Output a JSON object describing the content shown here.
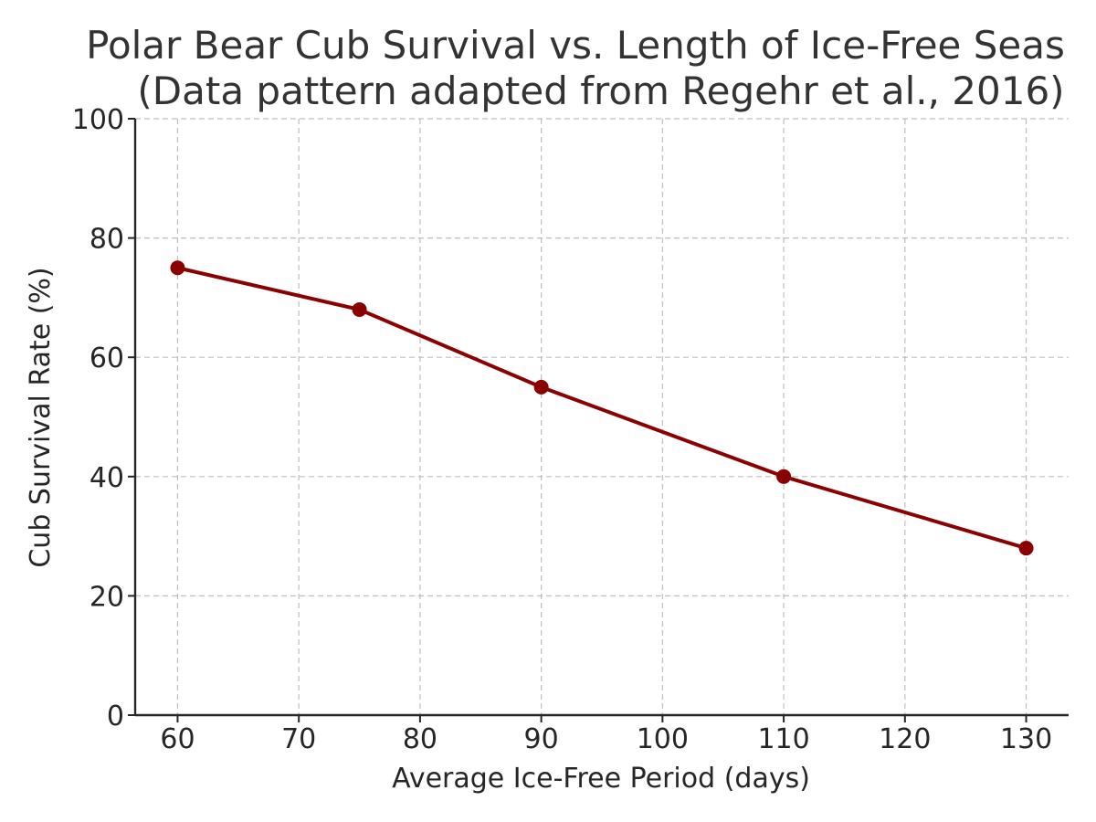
{
  "chart_data": {
    "type": "line",
    "title_line1": "Polar Bear Cub Survival vs. Length of Ice-Free Seas",
    "title_line2": "(Data pattern adapted from Regehr et al., 2016)",
    "xlabel": "Average Ice-Free Period (days)",
    "ylabel": "Cub Survival Rate (%)",
    "x": [
      60,
      75,
      90,
      110,
      130
    ],
    "series": [
      {
        "values": [
          75,
          68,
          55,
          40,
          28
        ],
        "color": "#8b0000"
      }
    ],
    "xticks": [
      60,
      70,
      80,
      90,
      100,
      110,
      120,
      130
    ],
    "yticks": [
      0,
      20,
      40,
      60,
      80,
      100
    ],
    "xlim": [
      56.5,
      133.5
    ],
    "ylim": [
      0,
      100
    ],
    "grid": true,
    "marker": "circle"
  }
}
